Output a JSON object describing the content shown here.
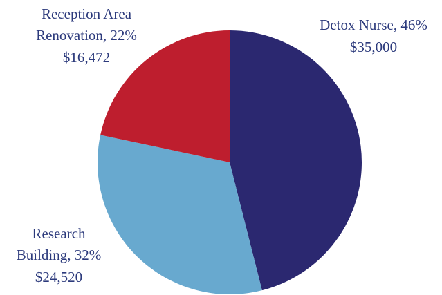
{
  "chart_data": {
    "type": "pie",
    "labels": [
      [
        "Detox Nurse, 46%"
      ],
      [
        "Research",
        "Building, 32%"
      ],
      [
        "Reception Area",
        "Renovation, 22%"
      ]
    ],
    "values": [
      35000,
      24520,
      16472
    ],
    "value_labels": [
      "$35,000",
      "$24,520",
      "$16,472"
    ],
    "colors": [
      "#2b2870",
      "#68a9cf",
      "#be1e2e"
    ],
    "start_angle": 0,
    "direction": "clockwise"
  }
}
